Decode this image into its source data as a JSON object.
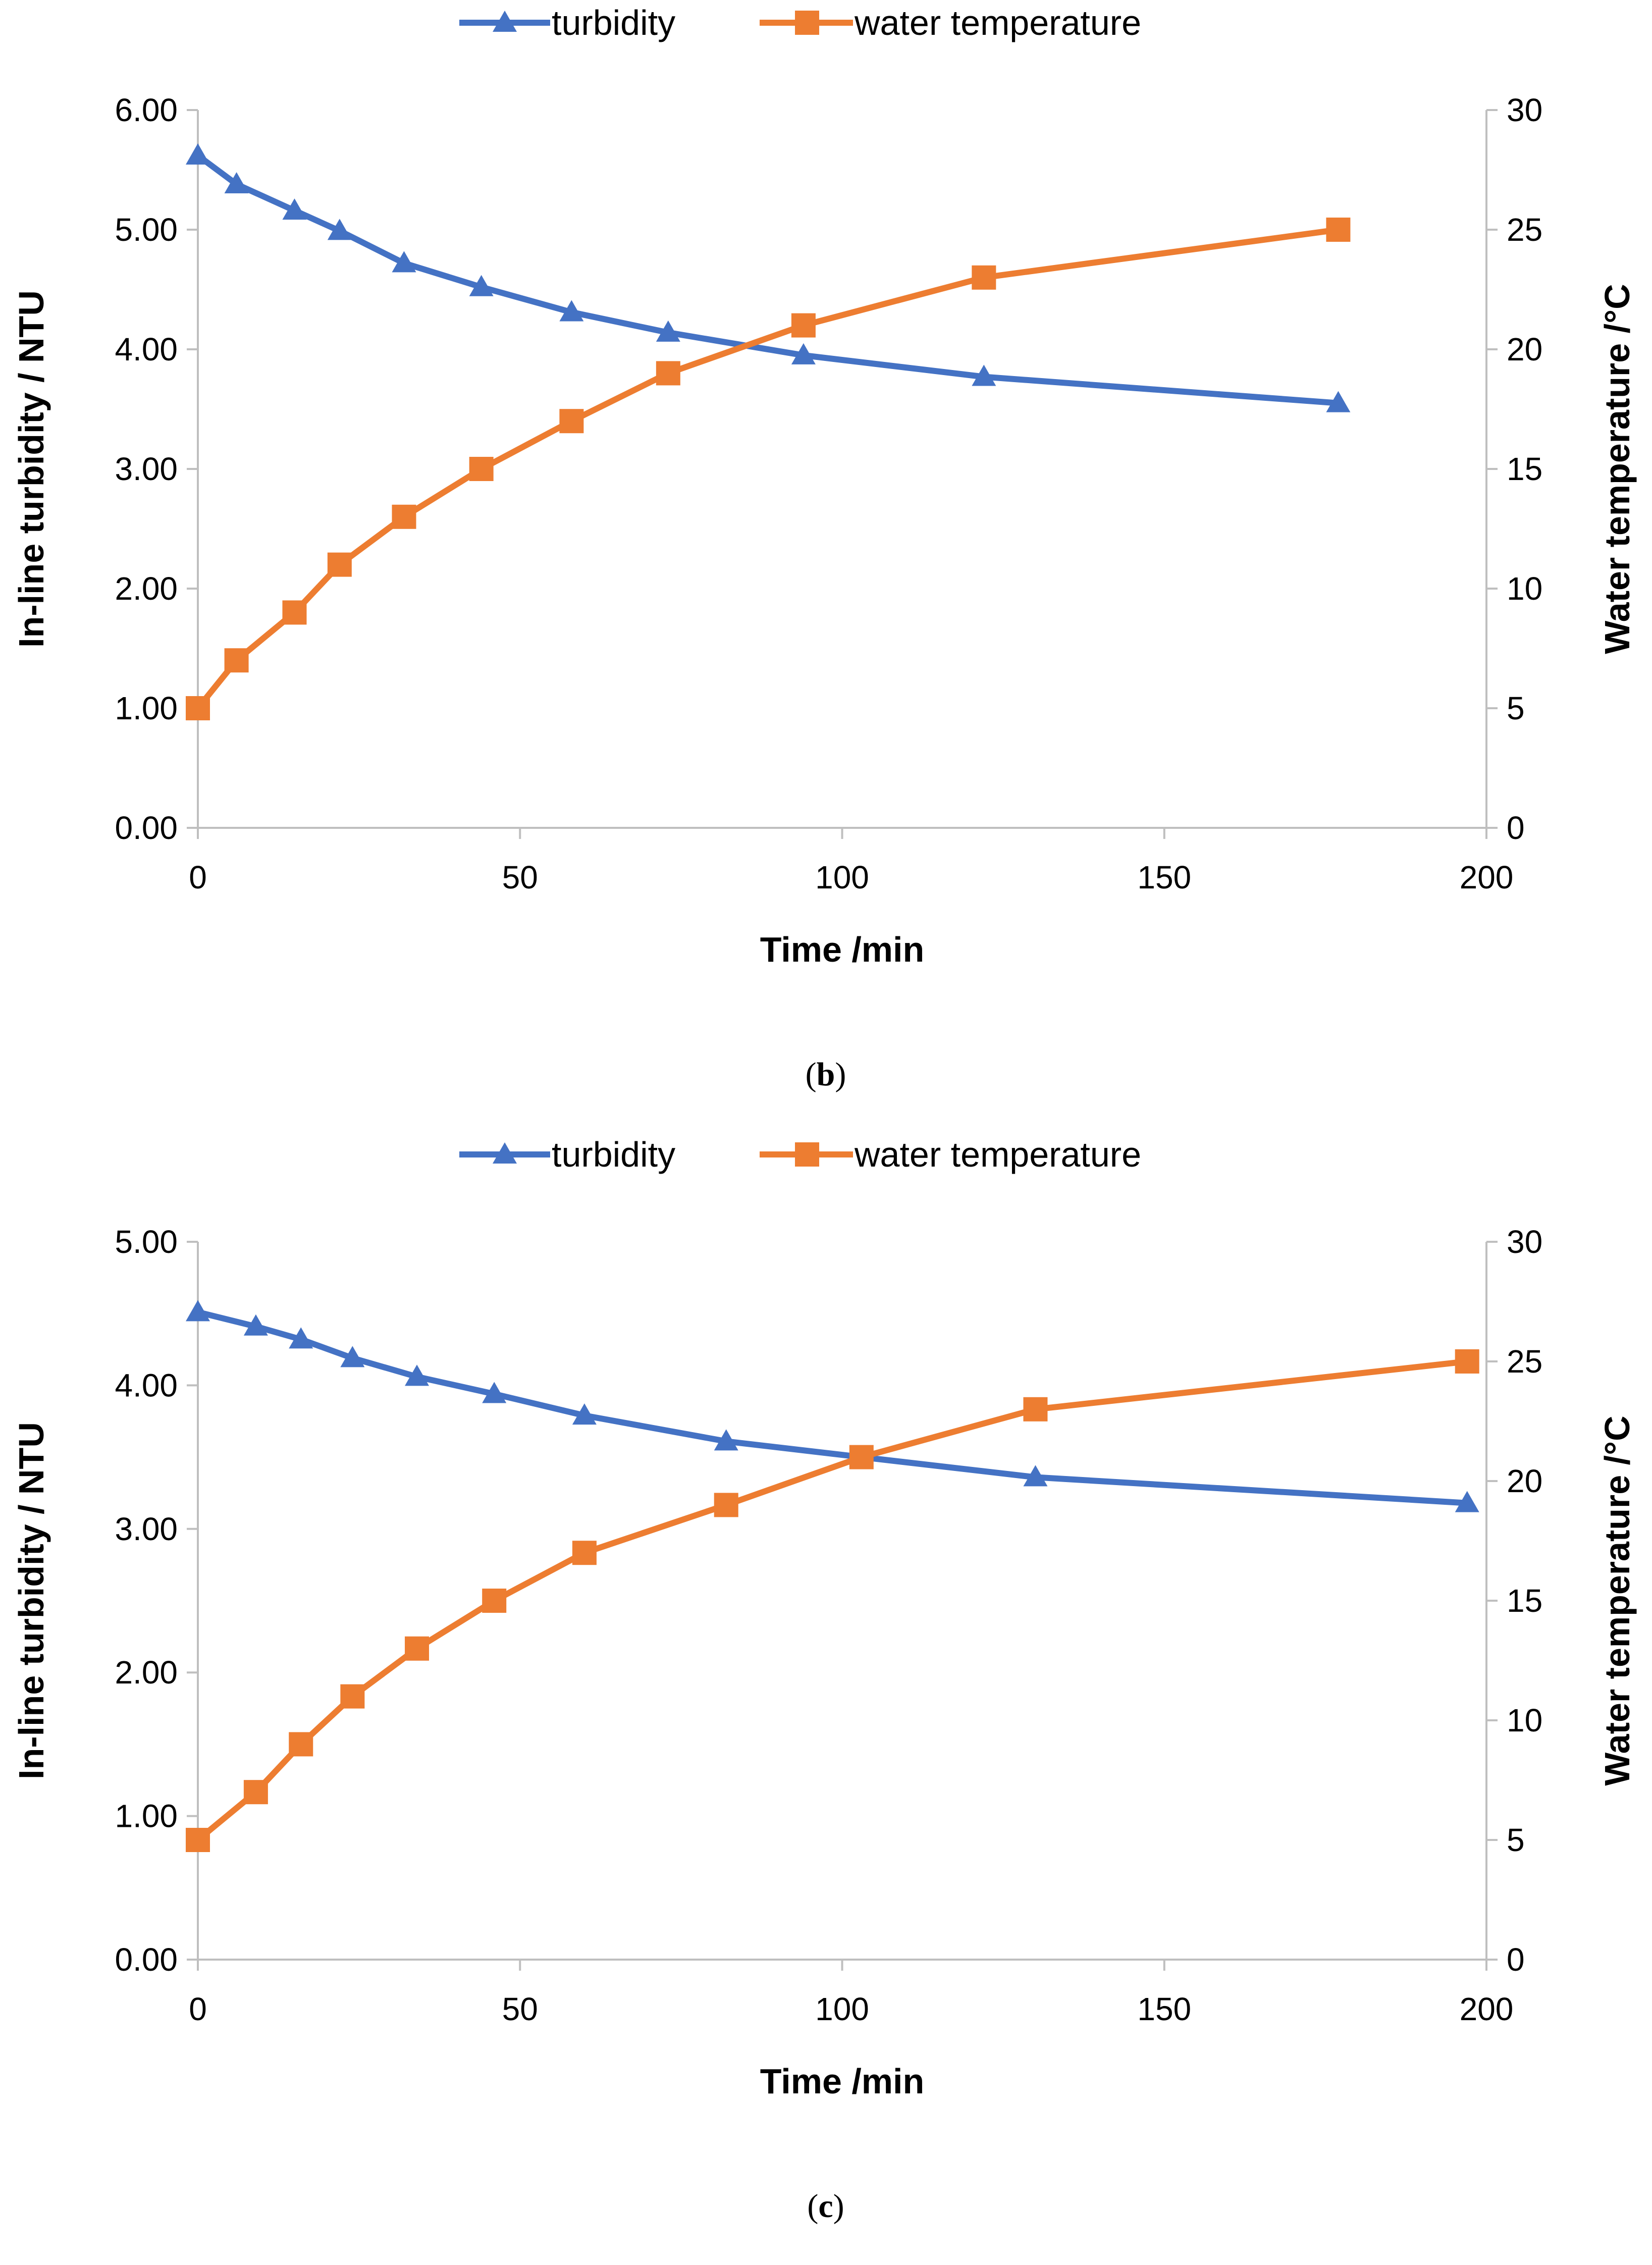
{
  "colors": {
    "turbidity": "#4472C4",
    "temperature": "#ED7D31",
    "axis": "#BFBFBF"
  },
  "chart_data": [
    {
      "type": "line",
      "panel_label": "b",
      "legend": [
        "turbidity",
        "water temperature"
      ],
      "legend_position": "top-center",
      "xlabel": "Time /min",
      "ylabel": "In-line turbidity / NTU",
      "y2label": "Water temperature /°C",
      "xlim": [
        0,
        200
      ],
      "ylim": [
        0,
        6
      ],
      "y2lim": [
        0,
        30
      ],
      "xticks": [
        "0",
        "50",
        "100",
        "150",
        "200"
      ],
      "yticks": [
        "0.00",
        "1.00",
        "2.00",
        "3.00",
        "4.00",
        "5.00",
        "6.00"
      ],
      "y2ticks": [
        "0",
        "5",
        "10",
        "15",
        "20",
        "25",
        "30"
      ],
      "series": [
        {
          "name": "turbidity",
          "axis": "left",
          "marker": "triangle",
          "x": [
            0,
            6,
            15,
            22,
            32,
            44,
            58,
            73,
            94,
            122,
            177
          ],
          "values": [
            5.62,
            5.38,
            5.16,
            4.99,
            4.72,
            4.52,
            4.31,
            4.14,
            3.95,
            3.77,
            3.55
          ]
        },
        {
          "name": "water temperature",
          "axis": "right",
          "marker": "square",
          "x": [
            0,
            6,
            15,
            22,
            32,
            44,
            58,
            73,
            94,
            122,
            177
          ],
          "values": [
            5,
            7,
            9,
            11,
            13,
            15,
            17,
            19,
            21,
            23,
            25
          ]
        }
      ]
    },
    {
      "type": "line",
      "panel_label": "c",
      "legend": [
        "turbidity",
        "water temperature"
      ],
      "legend_position": "top-center",
      "xlabel": "Time /min",
      "ylabel": "In-line turbidity / NTU",
      "y2label": "Water temperature /°C",
      "xlim": [
        0,
        200
      ],
      "ylim": [
        0,
        5
      ],
      "y2lim": [
        0,
        30
      ],
      "xticks": [
        "0",
        "50",
        "100",
        "150",
        "200"
      ],
      "yticks": [
        "0.00",
        "1.00",
        "2.00",
        "3.00",
        "4.00",
        "5.00"
      ],
      "y2ticks": [
        "0",
        "5",
        "10",
        "15",
        "20",
        "25",
        "30"
      ],
      "series": [
        {
          "name": "turbidity",
          "axis": "left",
          "marker": "triangle",
          "x": [
            0,
            9,
            16,
            24,
            34,
            46,
            60,
            82,
            103,
            130,
            197
          ],
          "values": [
            4.51,
            4.41,
            4.32,
            4.19,
            4.06,
            3.94,
            3.79,
            3.61,
            3.5,
            3.36,
            3.18
          ]
        },
        {
          "name": "water temperature",
          "axis": "right",
          "marker": "square",
          "x": [
            0,
            9,
            16,
            24,
            34,
            46,
            60,
            82,
            103,
            130,
            197
          ],
          "values": [
            5,
            7,
            9,
            11,
            13,
            15,
            17,
            19,
            21,
            23,
            25
          ]
        }
      ]
    }
  ]
}
